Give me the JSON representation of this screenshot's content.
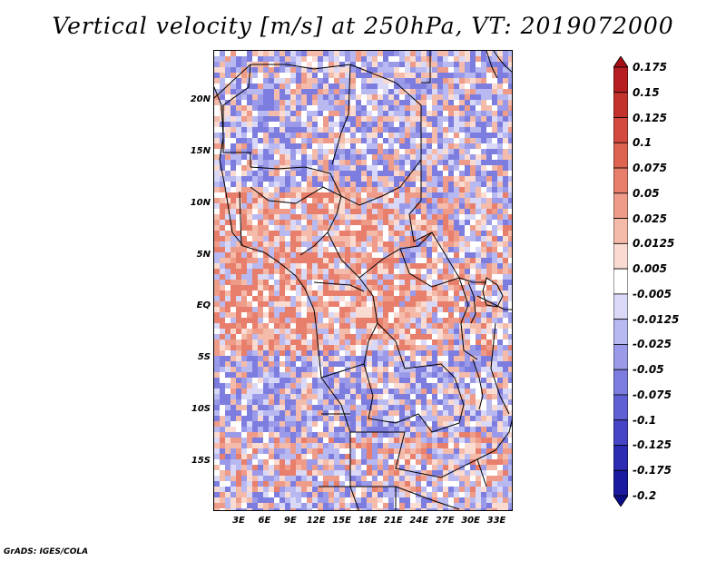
{
  "title": "Vertical velocity [m/s] at 250hPa, VT: 2019072000",
  "map": {
    "lat_labels": [
      "20N",
      "15N",
      "10N",
      "5N",
      "EQ",
      "5S",
      "10S",
      "15S"
    ],
    "lon_labels": [
      "3E",
      "6E",
      "9E",
      "12E",
      "15E",
      "18E",
      "21E",
      "24E",
      "27E",
      "30E",
      "33E"
    ],
    "field": "Vertical velocity",
    "units": "m/s",
    "level": "250hPa",
    "valid_time": "2019072000"
  },
  "colorbar": {
    "levels": [
      "0.175",
      "0.15",
      "0.125",
      "0.1",
      "0.075",
      "0.05",
      "0.025",
      "0.0125",
      "0.005",
      "-0.005",
      "-0.0125",
      "-0.025",
      "-0.05",
      "-0.075",
      "-0.1",
      "-0.125",
      "-0.175",
      "-0.2"
    ],
    "colors": [
      "#a50f15",
      "#b51d20",
      "#c4322d",
      "#d44a3e",
      "#de6452",
      "#e77f6c",
      "#ee9c89",
      "#f4bbab",
      "#f9dbd2",
      "#ffffff",
      "#d9d9f7",
      "#b9b9f1",
      "#9a9ae9",
      "#7d7de0",
      "#6060d4",
      "#4545c6",
      "#2b2bb4",
      "#1a1aa0",
      "#0c0c8a"
    ]
  },
  "credit": "GrADS: IGES/COLA"
}
